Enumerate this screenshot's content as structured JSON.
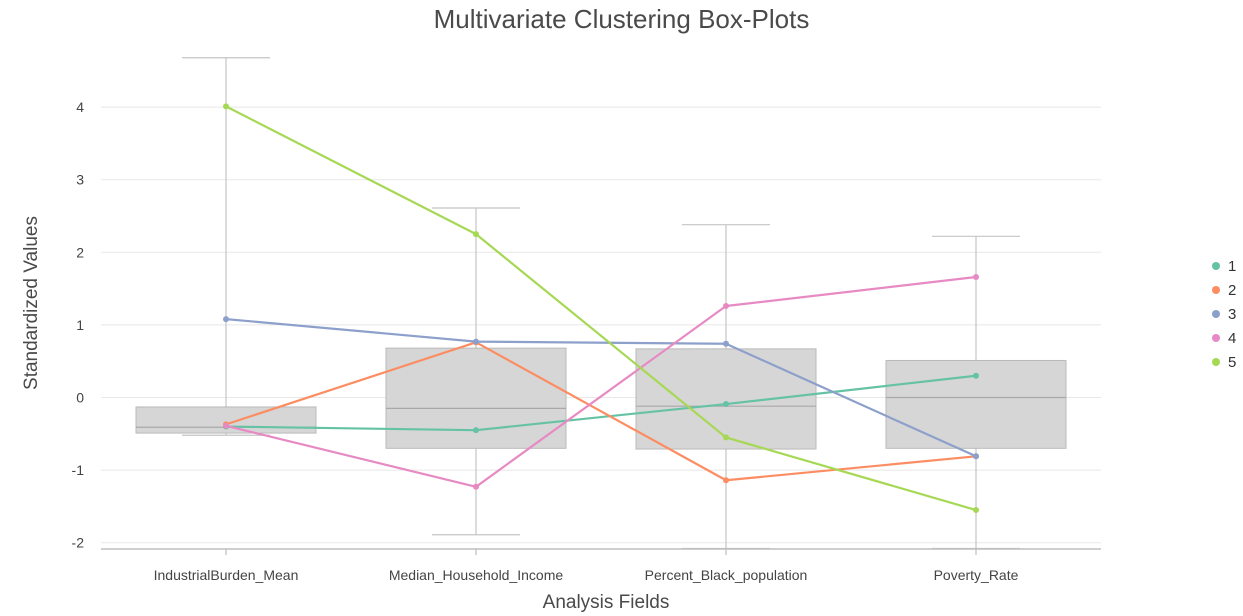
{
  "chart_data": {
    "type": "box",
    "title": "Multivariate Clustering Box-Plots",
    "xlabel": "Analysis Fields",
    "ylabel": "Standardized Values",
    "ylim": [
      -2.1,
      4.9
    ],
    "yticks": [
      -2,
      -1,
      0,
      1,
      2,
      3,
      4
    ],
    "categories": [
      "IndustrialBurden_Mean",
      "Median_Household_Income",
      "Percent_Black_population",
      "Poverty_Rate"
    ],
    "boxes": [
      {
        "min": -0.52,
        "q1": -0.49,
        "median": -0.41,
        "q3": -0.13,
        "max": 4.68
      },
      {
        "min": -1.89,
        "q1": -0.7,
        "median": -0.15,
        "q3": 0.68,
        "max": 2.61
      },
      {
        "min": -2.08,
        "q1": -0.71,
        "median": -0.12,
        "q3": 0.67,
        "max": 2.38
      },
      {
        "min": -2.08,
        "q1": -0.7,
        "median": 0.0,
        "q3": 0.51,
        "max": 2.22
      }
    ],
    "series": [
      {
        "name": "1",
        "color": "#66c2a5",
        "values": [
          -0.4,
          -0.45,
          -0.09,
          0.3
        ]
      },
      {
        "name": "2",
        "color": "#fc8d62",
        "values": [
          -0.37,
          0.76,
          -1.14,
          -0.81
        ]
      },
      {
        "name": "3",
        "color": "#8da0cb",
        "values": [
          1.08,
          0.77,
          0.74,
          -0.81
        ]
      },
      {
        "name": "4",
        "color": "#e78ac3",
        "values": [
          -0.39,
          -1.23,
          1.26,
          1.66
        ]
      },
      {
        "name": "5",
        "color": "#a6d854",
        "values": [
          4.01,
          2.25,
          -0.55,
          -1.55
        ]
      }
    ],
    "legend": "right",
    "grid": true
  }
}
